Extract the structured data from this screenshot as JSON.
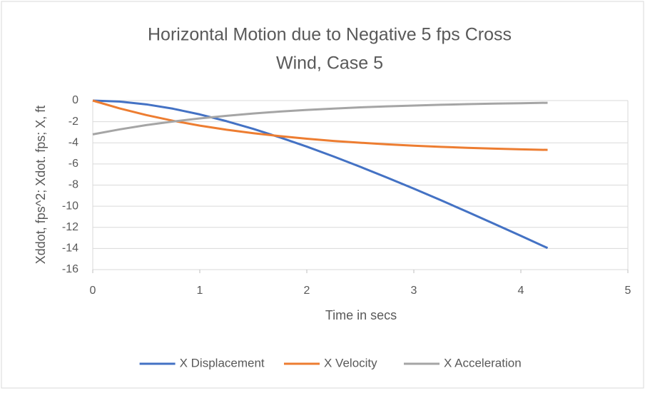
{
  "chart_data": {
    "type": "line",
    "title": [
      "Horizontal Motion due to Negative 5 fps Cross",
      "Wind, Case 5"
    ],
    "x_label": "Time in secs",
    "y_label": "Xddot, fps^2; Xdot. fps; X, ft",
    "x": [
      0,
      0.25,
      0.5,
      0.75,
      1.0,
      1.25,
      1.5,
      1.75,
      2.0,
      2.25,
      2.5,
      2.75,
      3.0,
      3.25,
      3.5,
      3.75,
      4.0,
      4.25
    ],
    "series": [
      {
        "name": "X Displacement",
        "color": "#4472c4",
        "values": [
          0,
          -0.09,
          -0.36,
          -0.77,
          -1.31,
          -1.95,
          -2.68,
          -3.49,
          -4.36,
          -5.29,
          -6.27,
          -7.29,
          -8.34,
          -9.42,
          -10.53,
          -11.66,
          -12.8,
          -13.96
        ]
      },
      {
        "name": "X Velocity",
        "color": "#ed7d31",
        "values": [
          0,
          -0.74,
          -1.37,
          -1.91,
          -2.37,
          -2.76,
          -3.09,
          -3.37,
          -3.61,
          -3.82,
          -3.99,
          -4.14,
          -4.27,
          -4.38,
          -4.47,
          -4.55,
          -4.62,
          -4.67
        ]
      },
      {
        "name": "X Acceleration",
        "color": "#a5a5a5",
        "values": [
          -3.2,
          -2.73,
          -2.32,
          -1.98,
          -1.69,
          -1.44,
          -1.22,
          -1.04,
          -0.89,
          -0.76,
          -0.64,
          -0.55,
          -0.47,
          -0.4,
          -0.34,
          -0.29,
          -0.25,
          -0.21
        ]
      }
    ],
    "xlim": [
      0,
      5
    ],
    "xticks": [
      0,
      1,
      2,
      3,
      4,
      5
    ],
    "ylim": [
      -16,
      0
    ],
    "yticks": [
      0,
      -2,
      -4,
      -6,
      -8,
      -10,
      -12,
      -14,
      -16
    ],
    "grid": true,
    "legend": "bottom"
  }
}
